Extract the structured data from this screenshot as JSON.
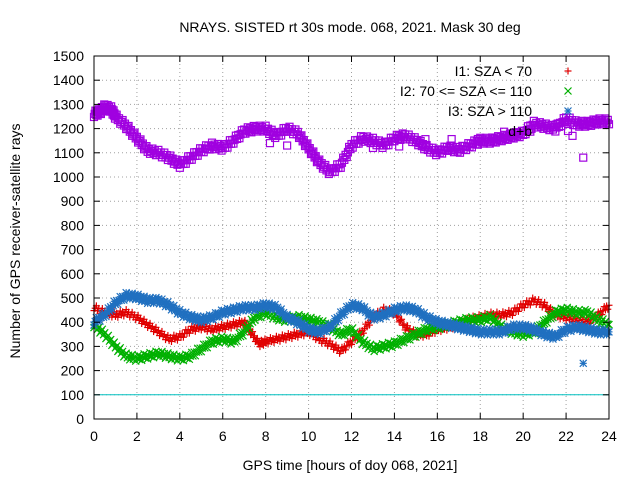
{
  "chart_data": {
    "type": "scatter",
    "title": "NRAYS. SISTED rt 30s mode. 068, 2021. Mask 30 deg",
    "xlabel": "GPS time [hours of doy 068, 2021]",
    "ylabel": "Number of GPS receiver-satellite rays",
    "xlim": [
      0,
      24
    ],
    "ylim": [
      0,
      1500
    ],
    "xticks": [
      0,
      2,
      4,
      6,
      8,
      10,
      12,
      14,
      16,
      18,
      20,
      22,
      24
    ],
    "yticks": [
      0,
      100,
      200,
      300,
      400,
      500,
      600,
      700,
      800,
      900,
      1000,
      1100,
      1200,
      1300,
      1400,
      1500
    ],
    "grid": true,
    "legend_position": "top-right",
    "reference_line": {
      "y": 100,
      "color": "#00c0c0"
    },
    "series": [
      {
        "name": "I1: SZA < 70",
        "marker": "+",
        "color": "#e00000",
        "points": [
          [
            0.0,
            460
          ],
          [
            0.5,
            440
          ],
          [
            1.0,
            430
          ],
          [
            1.5,
            440
          ],
          [
            2.0,
            420
          ],
          [
            2.5,
            390
          ],
          [
            3.0,
            360
          ],
          [
            3.5,
            330
          ],
          [
            4.0,
            340
          ],
          [
            4.5,
            370
          ],
          [
            5.0,
            380
          ],
          [
            5.5,
            370
          ],
          [
            6.0,
            380
          ],
          [
            6.5,
            390
          ],
          [
            7.0,
            400
          ],
          [
            7.3,
            360
          ],
          [
            7.7,
            310
          ],
          [
            8.0,
            320
          ],
          [
            8.5,
            330
          ],
          [
            9.0,
            340
          ],
          [
            9.5,
            350
          ],
          [
            10.0,
            360
          ],
          [
            10.5,
            330
          ],
          [
            11.0,
            310
          ],
          [
            11.5,
            280
          ],
          [
            12.0,
            320
          ],
          [
            12.5,
            360
          ],
          [
            13.0,
            420
          ],
          [
            13.5,
            450
          ],
          [
            14.0,
            440
          ],
          [
            14.5,
            380
          ],
          [
            15.0,
            350
          ],
          [
            15.5,
            350
          ],
          [
            16.0,
            370
          ],
          [
            16.5,
            380
          ],
          [
            17.0,
            390
          ],
          [
            17.5,
            410
          ],
          [
            18.0,
            420
          ],
          [
            18.5,
            430
          ],
          [
            19.0,
            430
          ],
          [
            19.5,
            440
          ],
          [
            20.0,
            470
          ],
          [
            20.5,
            490
          ],
          [
            21.0,
            470
          ],
          [
            21.5,
            430
          ],
          [
            22.0,
            420
          ],
          [
            22.5,
            410
          ],
          [
            23.0,
            400
          ],
          [
            23.5,
            430
          ],
          [
            24.0,
            470
          ]
        ]
      },
      {
        "name": "I2: 70 <= SZA <= 110",
        "marker": "x",
        "color": "#00b000",
        "points": [
          [
            0.0,
            390
          ],
          [
            0.5,
            350
          ],
          [
            1.0,
            300
          ],
          [
            1.5,
            260
          ],
          [
            2.0,
            250
          ],
          [
            2.5,
            260
          ],
          [
            3.0,
            270
          ],
          [
            3.5,
            260
          ],
          [
            4.0,
            250
          ],
          [
            4.5,
            260
          ],
          [
            5.0,
            290
          ],
          [
            5.5,
            320
          ],
          [
            6.0,
            330
          ],
          [
            6.5,
            320
          ],
          [
            7.0,
            360
          ],
          [
            7.5,
            420
          ],
          [
            8.0,
            440
          ],
          [
            8.5,
            420
          ],
          [
            9.0,
            410
          ],
          [
            9.5,
            420
          ],
          [
            10.0,
            410
          ],
          [
            10.5,
            400
          ],
          [
            11.0,
            380
          ],
          [
            11.5,
            350
          ],
          [
            12.0,
            370
          ],
          [
            12.5,
            320
          ],
          [
            13.0,
            290
          ],
          [
            13.5,
            300
          ],
          [
            14.0,
            310
          ],
          [
            14.5,
            330
          ],
          [
            15.0,
            350
          ],
          [
            15.5,
            370
          ],
          [
            16.0,
            380
          ],
          [
            16.5,
            390
          ],
          [
            17.0,
            400
          ],
          [
            17.5,
            410
          ],
          [
            18.0,
            410
          ],
          [
            18.5,
            420
          ],
          [
            19.0,
            380
          ],
          [
            19.5,
            360
          ],
          [
            20.0,
            350
          ],
          [
            20.5,
            360
          ],
          [
            21.0,
            400
          ],
          [
            21.5,
            440
          ],
          [
            22.0,
            450
          ],
          [
            22.5,
            440
          ],
          [
            23.0,
            440
          ],
          [
            23.5,
            410
          ],
          [
            24.0,
            390
          ]
        ]
      },
      {
        "name": "I3: SZA > 110",
        "marker": "*",
        "color": "#2070c0",
        "points": [
          [
            0.0,
            400
          ],
          [
            0.5,
            430
          ],
          [
            1.0,
            480
          ],
          [
            1.5,
            510
          ],
          [
            2.0,
            505
          ],
          [
            2.5,
            490
          ],
          [
            3.0,
            490
          ],
          [
            3.5,
            470
          ],
          [
            4.0,
            440
          ],
          [
            4.5,
            420
          ],
          [
            5.0,
            410
          ],
          [
            5.5,
            420
          ],
          [
            6.0,
            440
          ],
          [
            6.5,
            450
          ],
          [
            7.0,
            460
          ],
          [
            7.5,
            460
          ],
          [
            8.0,
            470
          ],
          [
            8.5,
            460
          ],
          [
            9.0,
            420
          ],
          [
            9.5,
            400
          ],
          [
            10.0,
            370
          ],
          [
            10.5,
            360
          ],
          [
            11.0,
            380
          ],
          [
            11.5,
            430
          ],
          [
            12.0,
            470
          ],
          [
            12.5,
            460
          ],
          [
            13.0,
            420
          ],
          [
            13.5,
            430
          ],
          [
            14.0,
            450
          ],
          [
            14.5,
            460
          ],
          [
            15.0,
            450
          ],
          [
            15.5,
            420
          ],
          [
            16.0,
            400
          ],
          [
            16.5,
            390
          ],
          [
            17.0,
            380
          ],
          [
            17.5,
            370
          ],
          [
            18.0,
            360
          ],
          [
            18.5,
            360
          ],
          [
            19.0,
            360
          ],
          [
            19.5,
            380
          ],
          [
            20.0,
            380
          ],
          [
            20.5,
            370
          ],
          [
            21.0,
            350
          ],
          [
            21.5,
            340
          ],
          [
            22.0,
            370
          ],
          [
            22.5,
            380
          ],
          [
            23.0,
            370
          ],
          [
            23.5,
            360
          ],
          [
            24.0,
            360
          ],
          [
            22.8,
            230
          ]
        ]
      },
      {
        "name": "d+b",
        "marker": "square",
        "color": "#a000e0",
        "points": [
          [
            0.0,
            1260
          ],
          [
            0.3,
            1270
          ],
          [
            0.5,
            1290
          ],
          [
            0.8,
            1280
          ],
          [
            1.0,
            1250
          ],
          [
            1.5,
            1210
          ],
          [
            2.0,
            1160
          ],
          [
            2.5,
            1110
          ],
          [
            3.0,
            1100
          ],
          [
            3.5,
            1080
          ],
          [
            4.0,
            1050
          ],
          [
            4.5,
            1080
          ],
          [
            5.0,
            1110
          ],
          [
            5.5,
            1130
          ],
          [
            6.0,
            1120
          ],
          [
            6.5,
            1150
          ],
          [
            7.0,
            1190
          ],
          [
            7.5,
            1200
          ],
          [
            8.0,
            1200
          ],
          [
            8.5,
            1170
          ],
          [
            9.0,
            1200
          ],
          [
            9.5,
            1180
          ],
          [
            10.0,
            1120
          ],
          [
            10.5,
            1060
          ],
          [
            11.0,
            1020
          ],
          [
            11.5,
            1050
          ],
          [
            12.0,
            1130
          ],
          [
            12.5,
            1160
          ],
          [
            13.0,
            1150
          ],
          [
            13.5,
            1130
          ],
          [
            14.0,
            1160
          ],
          [
            14.5,
            1170
          ],
          [
            15.0,
            1150
          ],
          [
            15.5,
            1120
          ],
          [
            16.0,
            1100
          ],
          [
            16.5,
            1120
          ],
          [
            17.0,
            1110
          ],
          [
            17.5,
            1130
          ],
          [
            18.0,
            1150
          ],
          [
            18.5,
            1150
          ],
          [
            19.0,
            1160
          ],
          [
            19.5,
            1170
          ],
          [
            20.0,
            1180
          ],
          [
            20.5,
            1220
          ],
          [
            21.0,
            1210
          ],
          [
            21.5,
            1200
          ],
          [
            22.0,
            1240
          ],
          [
            22.5,
            1220
          ],
          [
            23.0,
            1220
          ],
          [
            23.5,
            1230
          ],
          [
            24.0,
            1230
          ],
          [
            22.8,
            1080
          ],
          [
            22.3,
            1170
          ],
          [
            9.0,
            1130
          ],
          [
            8.2,
            1140
          ],
          [
            13.0,
            1120
          ]
        ]
      }
    ]
  }
}
